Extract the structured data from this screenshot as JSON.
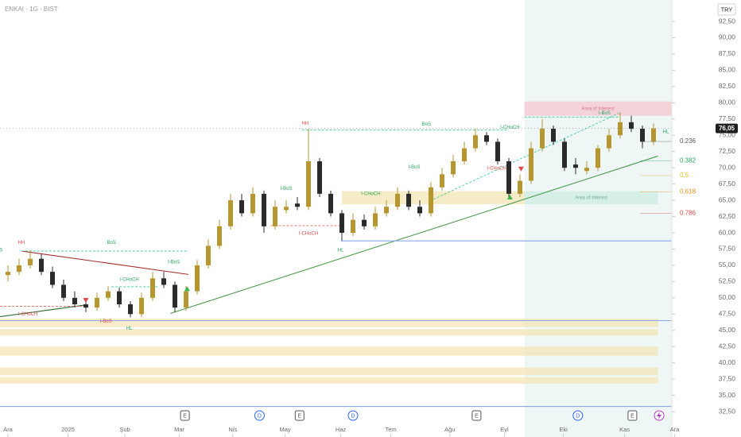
{
  "chart_data": {
    "type": "candlestick",
    "title": "ENKAI · 1G · BIST",
    "currency": "TRY",
    "up_color": "#b8962e",
    "down_color": "#2b2b2b",
    "open": [
      53.5,
      54,
      55,
      56,
      54,
      52,
      50,
      49,
      48.5,
      50,
      51,
      49,
      47.5,
      50,
      53,
      52,
      48.5,
      51,
      55,
      58,
      61,
      65,
      63,
      66,
      61,
      63.5,
      64.5,
      64,
      71,
      66,
      63,
      60,
      62,
      61,
      63,
      64,
      66,
      64,
      63,
      67,
      69,
      71,
      73,
      75,
      74,
      71,
      66,
      68,
      73,
      76,
      74,
      70.5,
      69.5,
      70,
      73,
      75,
      77,
      76,
      74
    ],
    "high": [
      55,
      56,
      57.3,
      56.8,
      54.8,
      52.8,
      51,
      50,
      50.8,
      51.8,
      51.6,
      49.5,
      50.8,
      54,
      54,
      52.5,
      51.8,
      55.8,
      59,
      62,
      66,
      66,
      67,
      66.5,
      65,
      65,
      65.5,
      76,
      71.5,
      66.5,
      63.5,
      63,
      62.8,
      64,
      65,
      67,
      66.5,
      65,
      67.8,
      70,
      72,
      74,
      76,
      75.5,
      74.5,
      71.5,
      69,
      74,
      77.5,
      76.5,
      74.5,
      71.5,
      71,
      73.5,
      76,
      78.5,
      78,
      76.5,
      76.8
    ],
    "low": [
      52.5,
      53.5,
      54.5,
      53.5,
      51.5,
      49.5,
      48.5,
      47.8,
      48,
      49.5,
      48.5,
      47,
      47,
      49.5,
      51.5,
      47.8,
      48,
      50.5,
      54.5,
      57.5,
      60.5,
      62.5,
      62.5,
      60,
      60.5,
      63,
      63.5,
      63.5,
      65.5,
      62.5,
      58.8,
      59.5,
      60.5,
      60.5,
      62.5,
      63.5,
      63.5,
      62.5,
      62.5,
      66.5,
      68.5,
      70.5,
      72.5,
      73.5,
      70.5,
      65.3,
      65.5,
      67.5,
      72.5,
      73.5,
      69.5,
      69,
      69,
      69.5,
      72.5,
      74.5,
      75.5,
      73,
      73.5
    ],
    "close": [
      54,
      55,
      56,
      54,
      52,
      50,
      49,
      48.5,
      50,
      51,
      49,
      47.5,
      50,
      53,
      52,
      48.5,
      51,
      55,
      58,
      61,
      65,
      63,
      66,
      61,
      64,
      64,
      64,
      71,
      66,
      63,
      60,
      62,
      61,
      63,
      64,
      66,
      64,
      63,
      67,
      69,
      71,
      73,
      75,
      74,
      71,
      66,
      68,
      73,
      76,
      74,
      70,
      70,
      70,
      73,
      75,
      77,
      76,
      74,
      76.05
    ],
    "last_price": {
      "value": 76.05,
      "label": "76,05"
    },
    "xlim": [
      -0.714,
      65.857
    ],
    "xticks": [
      {
        "value": 0,
        "label": "Ara"
      },
      {
        "value": 5.4,
        "label": "2025"
      },
      {
        "value": 10.5,
        "label": "Şub"
      },
      {
        "value": 15.4,
        "label": "Mar"
      },
      {
        "value": 20.2,
        "label": "Nis"
      },
      {
        "value": 24.9,
        "label": "May"
      },
      {
        "value": 29.9,
        "label": "Haz"
      },
      {
        "value": 34.4,
        "label": "Tem"
      },
      {
        "value": 39.7,
        "label": "Ağu"
      },
      {
        "value": 44.6,
        "label": "Eyl"
      },
      {
        "value": 49.9,
        "label": "Eki"
      },
      {
        "value": 55.4,
        "label": "Kas"
      },
      {
        "value": 59.9,
        "label": "Ara"
      }
    ],
    "ylim": [
      28.6,
      95.8
    ],
    "yticks": [
      {
        "value": 32.5,
        "label": "32,50"
      },
      {
        "value": 35,
        "label": "35,00"
      },
      {
        "value": 37.5,
        "label": "37,50"
      },
      {
        "value": 40,
        "label": "40,00"
      },
      {
        "value": 42.5,
        "label": "42,50"
      },
      {
        "value": 45,
        "label": "45,00"
      },
      {
        "value": 47.5,
        "label": "47,50"
      },
      {
        "value": 50,
        "label": "50,00"
      },
      {
        "value": 52.5,
        "label": "52,50"
      },
      {
        "value": 55,
        "label": "55,00"
      },
      {
        "value": 57.5,
        "label": "57,50"
      },
      {
        "value": 60,
        "label": "60,00"
      },
      {
        "value": 62.5,
        "label": "62,50"
      },
      {
        "value": 65,
        "label": "65,00"
      },
      {
        "value": 67.5,
        "label": "67,50"
      },
      {
        "value": 70,
        "label": "70,00"
      },
      {
        "value": 72.5,
        "label": "72,50"
      },
      {
        "value": 75,
        "label": "75,00"
      },
      {
        "value": 77.5,
        "label": "77,50"
      },
      {
        "value": 80,
        "label": "80,00"
      },
      {
        "value": 82.5,
        "label": "82,50"
      },
      {
        "value": 85,
        "label": "85,00"
      },
      {
        "value": 87.5,
        "label": "87,50"
      },
      {
        "value": 90,
        "label": "90,00"
      },
      {
        "value": 92.5,
        "label": "92,50"
      }
    ],
    "zones": [
      {
        "x1": 46.4,
        "x2": 59.6,
        "y1": 78,
        "y2": 80.2,
        "color": "#f4c7cf",
        "text": "Area of Interest",
        "text_color": "#d77a8a"
      },
      {
        "x1": 46.4,
        "x2": 58.4,
        "y1": 64.4,
        "y2": 66.4,
        "color": "#cdeee3",
        "text": "Area of Interest",
        "text_color": "#6fae93"
      },
      {
        "x1": 30,
        "x2": 46.4,
        "y1": 64.4,
        "y2": 66.4,
        "color": "#f3e6b5"
      },
      {
        "x1": -0.714,
        "x2": 58.4,
        "y1": 45.5,
        "y2": 46.8,
        "color": "#f3e6b5"
      },
      {
        "x1": -0.714,
        "x2": 58.4,
        "y1": 44.2,
        "y2": 45.2,
        "color": "#f3e6b5"
      },
      {
        "x1": -0.714,
        "x2": 58.4,
        "y1": 41.1,
        "y2": 42.5,
        "color": "#f3e6b5"
      },
      {
        "x1": -0.714,
        "x2": 58.4,
        "y1": 38.1,
        "y2": 39.3,
        "color": "#f3e6b5"
      },
      {
        "x1": -0.714,
        "x2": 58.4,
        "y1": 36.8,
        "y2": 37.8,
        "color": "#f3e6b5"
      }
    ],
    "lines": [
      {
        "x1": 14.6,
        "y1": 47.6,
        "x2": 58.4,
        "y2": 71.8,
        "color": "#4f9a4f",
        "dash": false
      },
      {
        "x1": -0.714,
        "y1": 47.1,
        "x2": 7,
        "y2": 48.9,
        "color": "#2e6b2e",
        "dash": false
      },
      {
        "x1": 1.2,
        "y1": 57.2,
        "x2": 16.2,
        "y2": 53.6,
        "color": "#a52a2a",
        "dash": false
      },
      {
        "x1": 37.9,
        "y1": 64.9,
        "x2": 54.9,
        "y2": 78.4,
        "color": "#2ecc8f",
        "dash": true
      },
      {
        "x1": 29.9,
        "y1": 58.75,
        "x2": 59.6,
        "y2": 58.75,
        "color": "#8aa8e8",
        "dash": false
      },
      {
        "x1": -0.714,
        "y1": 46.5,
        "x2": 59.6,
        "y2": 46.5,
        "color": "#8aa8e8",
        "dash": false
      },
      {
        "x1": -0.714,
        "y1": 33.3,
        "x2": 59.6,
        "y2": 33.3,
        "color": "#8aa8e8",
        "dash": false
      },
      {
        "x1": 1.2,
        "y1": 57.2,
        "x2": 16.2,
        "y2": 57.2,
        "color": "#2ecc8f",
        "dash": true
      },
      {
        "x1": 26.4,
        "y1": 75.8,
        "x2": 45,
        "y2": 75.8,
        "color": "#2ecc8f",
        "dash": true
      },
      {
        "x1": 46.4,
        "y1": 77.8,
        "x2": 54.9,
        "y2": 77.8,
        "color": "#2ecc8f",
        "dash": true
      },
      {
        "x1": -0.714,
        "y1": 48.7,
        "x2": 7,
        "y2": 48.7,
        "color": "#e05050",
        "dash": true
      },
      {
        "x1": 9.3,
        "y1": 51.7,
        "x2": 13.6,
        "y2": 51.7,
        "color": "#2ecc8f",
        "dash": true
      },
      {
        "x1": 23.6,
        "y1": 61.1,
        "x2": 29.9,
        "y2": 61.1,
        "color": "#e05050",
        "dash": true
      }
    ],
    "fib": [
      {
        "ratio": 0.236,
        "price": 74.05,
        "color": "#555555"
      },
      {
        "ratio": 0.382,
        "price": 71.1,
        "color": "#26a65b"
      },
      {
        "ratio": 0.5,
        "price": 68.8,
        "color": "#e3c21d"
      },
      {
        "ratio": 0.618,
        "price": 66.3,
        "color": "#f0901a"
      },
      {
        "ratio": 0.786,
        "price": 63,
        "color": "#e04848"
      }
    ],
    "annotations": [
      {
        "text": "BoS",
        "x": -0.9,
        "y": 57.3,
        "color": "#26a65b"
      },
      {
        "text": "HH",
        "x": 1.2,
        "y": 58.5,
        "color": "#e04848"
      },
      {
        "text": "BoS",
        "x": 9.3,
        "y": 58.5,
        "color": "#26a65b"
      },
      {
        "text": "I-BoS",
        "x": 14.9,
        "y": 55.5,
        "color": "#26a65b"
      },
      {
        "text": "I-CHoCH",
        "x": 10.9,
        "y": 52.8,
        "color": "#26a65b"
      },
      {
        "text": "I-CHoCH",
        "x": 1.8,
        "y": 47.5,
        "color": "#e04848"
      },
      {
        "text": "I-BoS",
        "x": 8.8,
        "y": 46.4,
        "color": "#e04848"
      },
      {
        "text": "HL",
        "x": 10.9,
        "y": 45.3,
        "color": "#26a65b"
      },
      {
        "text": "I-BoS",
        "x": 25,
        "y": 66.8,
        "color": "#26a65b"
      },
      {
        "text": "HH",
        "x": 26.7,
        "y": 76.8,
        "color": "#e04848"
      },
      {
        "text": "I-CHoCH",
        "x": 27,
        "y": 59.9,
        "color": "#e04848"
      },
      {
        "text": "HL",
        "x": 29.9,
        "y": 57.3,
        "color": "#26a65b"
      },
      {
        "text": "I-CHoCH",
        "x": 32.6,
        "y": 66,
        "color": "#26a65b"
      },
      {
        "text": "I-BoS",
        "x": 36.5,
        "y": 70.1,
        "color": "#26a65b"
      },
      {
        "text": "BoS",
        "x": 37.6,
        "y": 76.7,
        "color": "#26a65b"
      },
      {
        "text": "I-CHoCH",
        "x": 45.1,
        "y": 76.2,
        "color": "#26a65b"
      },
      {
        "text": "I-CHoCH",
        "x": 43.9,
        "y": 69.9,
        "color": "#e04848"
      },
      {
        "text": "I-BoS",
        "x": 53.6,
        "y": 78.4,
        "color": "#26a65b"
      },
      {
        "text": "HL",
        "x": 59.1,
        "y": 75.5,
        "color": "#26a65b"
      }
    ],
    "signals": [
      {
        "x": 16.1,
        "y": 51.4,
        "dir": "up",
        "color": "#3bb54a"
      },
      {
        "x": 7,
        "y": 49.6,
        "dir": "down",
        "color": "#e04848"
      },
      {
        "x": 46.1,
        "y": 69.8,
        "dir": "down",
        "color": "#e04848"
      },
      {
        "x": 45.1,
        "y": 65.5,
        "dir": "up",
        "color": "#3bb54a"
      }
    ],
    "events": [
      {
        "x": 15.9,
        "text": "E",
        "color": "#555555"
      },
      {
        "x": 22.6,
        "text": "D",
        "color": "#2962ff"
      },
      {
        "x": 26.2,
        "text": "E",
        "color": "#555555"
      },
      {
        "x": 31,
        "text": "D",
        "color": "#2962ff"
      },
      {
        "x": 42.1,
        "text": "E",
        "color": "#555555"
      },
      {
        "x": 51.2,
        "text": "D",
        "color": "#2962ff"
      },
      {
        "x": 56.1,
        "text": "E",
        "color": "#555555"
      }
    ]
  }
}
